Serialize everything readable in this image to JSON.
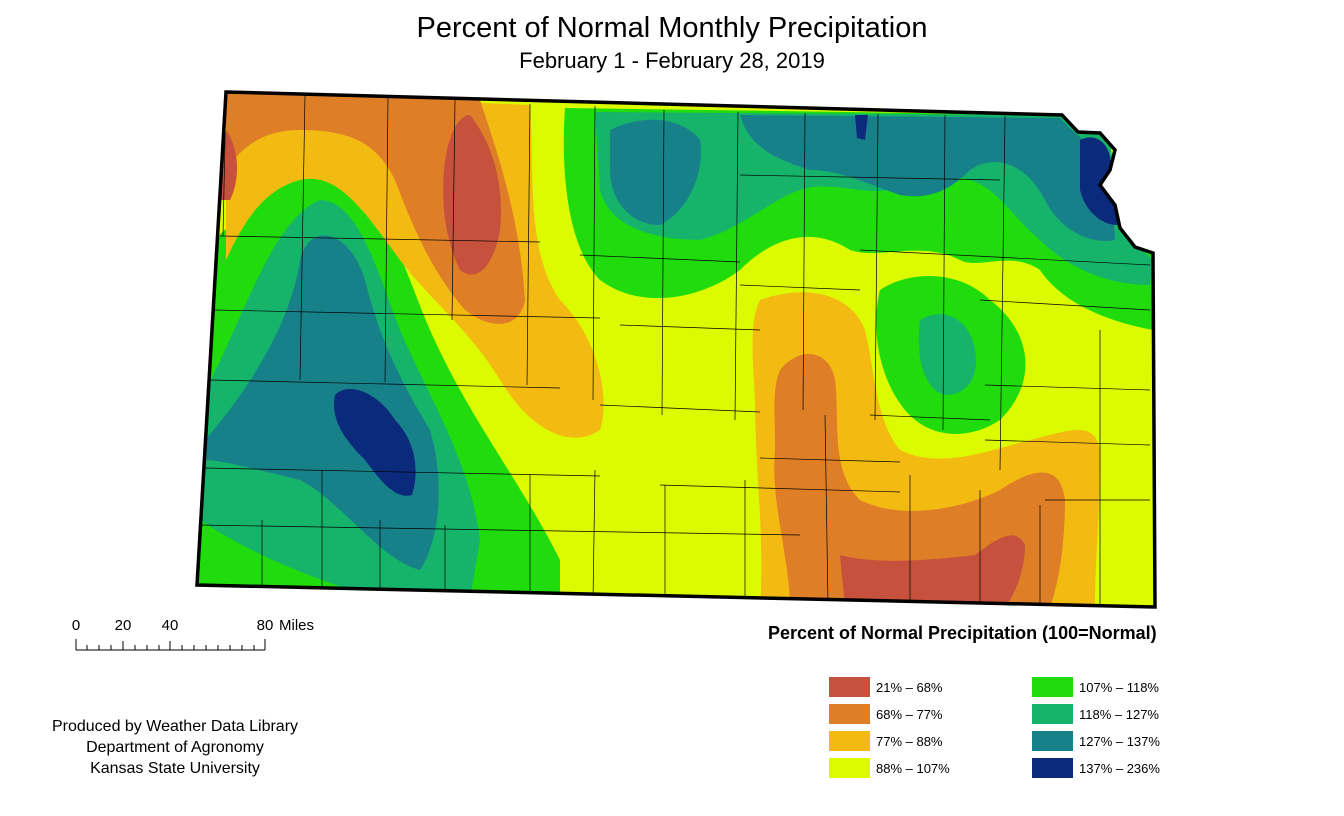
{
  "title": "Percent of Normal Monthly Precipitation",
  "subtitle": "February 1 - February 28, 2019",
  "scale_bar": {
    "ticks": [
      "0",
      "20",
      "40",
      "80"
    ],
    "units": "Miles"
  },
  "legend": {
    "title": "Percent of Normal Precipitation (100=Normal)",
    "items": [
      {
        "label": "21% – 68%",
        "color": "#c6523d"
      },
      {
        "label": "68% – 77%",
        "color": "#de7f27"
      },
      {
        "label": "77% – 88%",
        "color": "#f3bb12"
      },
      {
        "label": "88% – 107%",
        "color": "#dcfb00"
      },
      {
        "label": "107% – 118%",
        "color": "#21dc0c"
      },
      {
        "label": "118% – 127%",
        "color": "#16b46a"
      },
      {
        "label": "127% – 137%",
        "color": "#17818a"
      },
      {
        "label": "137% – 236%",
        "color": "#0c2a7b"
      }
    ]
  },
  "credit": {
    "line1": "Produced by Weather Data Library",
    "line2": "Department of Agronomy",
    "line3": "Kansas State University"
  }
}
